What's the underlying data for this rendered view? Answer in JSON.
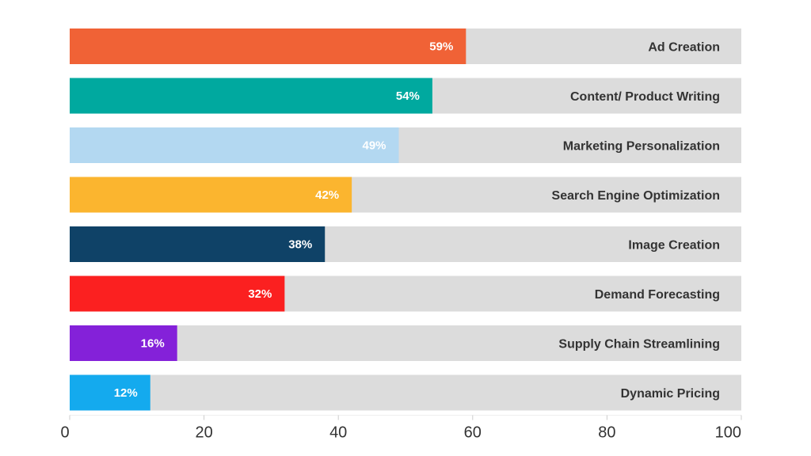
{
  "chart_data": {
    "type": "bar",
    "orientation": "horizontal",
    "categories": [
      "Ad Creation",
      "Content/ Product Writing",
      "Marketing Personalization",
      "Search Engine Optimization",
      "Image Creation",
      "Demand Forecasting",
      "Supply Chain Streamlining",
      "Dynamic Pricing"
    ],
    "values": [
      59,
      54,
      49,
      42,
      38,
      32,
      16,
      12
    ],
    "value_labels": [
      "59%",
      "54%",
      "49%",
      "42%",
      "38%",
      "32%",
      "16%",
      "12%"
    ],
    "colors": [
      "#f06236",
      "#00a99f",
      "#b3d8f1",
      "#fbb52f",
      "#0f4267",
      "#fb2020",
      "#8421d9",
      "#14aaee"
    ],
    "track_color": "#dcdcdc",
    "xlim": [
      0,
      100
    ],
    "xticks": [
      0,
      20,
      40,
      60,
      80,
      100
    ],
    "title": "",
    "xlabel": "",
    "ylabel": "",
    "grid": false,
    "legend": "none"
  }
}
